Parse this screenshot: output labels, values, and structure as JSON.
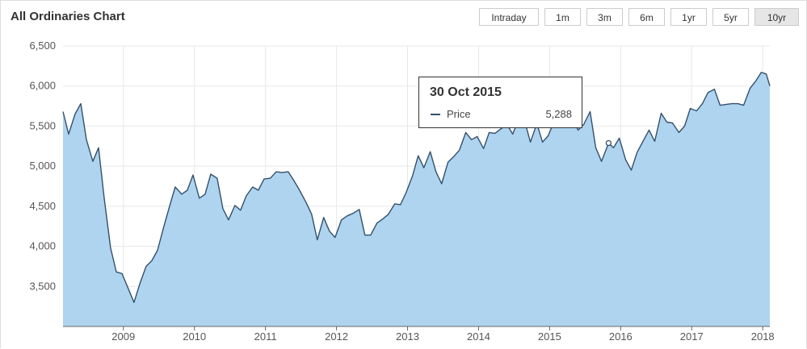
{
  "title": "All Ordinaries Chart",
  "range_buttons": [
    "Intraday",
    "1m",
    "3m",
    "6m",
    "1yr",
    "5yr",
    "10yr"
  ],
  "active_range": "10yr",
  "tooltip": {
    "date": "30 Oct 2015",
    "series_label": "Price",
    "value": "5,288"
  },
  "chart_data": {
    "type": "area",
    "title": "All Ordinaries Chart",
    "xlabel": "",
    "ylabel": "",
    "xlim": [
      2008.15,
      2018.1
    ],
    "ylim": [
      3000,
      6500
    ],
    "y_ticks": [
      3500,
      4000,
      4500,
      5000,
      5500,
      6000,
      6500
    ],
    "y_tick_labels": [
      "3,500",
      "4,000",
      "4,500",
      "5,000",
      "5,500",
      "6,000",
      "6,500"
    ],
    "x_ticks": [
      2009,
      2010,
      2011,
      2012,
      2013,
      2014,
      2015,
      2016,
      2017,
      2018
    ],
    "x_tick_labels": [
      "2009",
      "2010",
      "2011",
      "2012",
      "2013",
      "2014",
      "2015",
      "2016",
      "2017",
      "2018"
    ],
    "grid": true,
    "colors": {
      "line": "#34506c",
      "fill": "#aed4ef",
      "grid": "#e8e8e8",
      "axis": "#666666"
    },
    "highlight": {
      "x": 2015.83,
      "y": 5288,
      "label": "30 Oct 2015"
    },
    "series": [
      {
        "name": "Price",
        "x": [
          2008.15,
          2008.23,
          2008.32,
          2008.4,
          2008.48,
          2008.57,
          2008.65,
          2008.73,
          2008.82,
          2008.9,
          2008.98,
          2009.07,
          2009.15,
          2009.23,
          2009.32,
          2009.4,
          2009.48,
          2009.57,
          2009.65,
          2009.73,
          2009.82,
          2009.9,
          2009.98,
          2010.07,
          2010.15,
          2010.23,
          2010.32,
          2010.4,
          2010.48,
          2010.57,
          2010.65,
          2010.73,
          2010.82,
          2010.9,
          2010.98,
          2011.07,
          2011.15,
          2011.23,
          2011.32,
          2011.4,
          2011.48,
          2011.57,
          2011.65,
          2011.73,
          2011.82,
          2011.9,
          2011.98,
          2012.07,
          2012.15,
          2012.23,
          2012.32,
          2012.4,
          2012.48,
          2012.57,
          2012.65,
          2012.73,
          2012.82,
          2012.9,
          2012.98,
          2013.07,
          2013.15,
          2013.23,
          2013.32,
          2013.4,
          2013.48,
          2013.57,
          2013.65,
          2013.73,
          2013.82,
          2013.9,
          2013.98,
          2014.07,
          2014.15,
          2014.23,
          2014.32,
          2014.4,
          2014.48,
          2014.57,
          2014.65,
          2014.73,
          2014.82,
          2014.9,
          2014.98,
          2015.07,
          2015.15,
          2015.23,
          2015.32,
          2015.4,
          2015.48,
          2015.57,
          2015.65,
          2015.73,
          2015.83,
          2015.9,
          2015.98,
          2016.07,
          2016.15,
          2016.23,
          2016.32,
          2016.4,
          2016.48,
          2016.57,
          2016.65,
          2016.73,
          2016.82,
          2016.9,
          2016.98,
          2017.07,
          2017.15,
          2017.23,
          2017.32,
          2017.4,
          2017.48,
          2017.57,
          2017.65,
          2017.73,
          2017.82,
          2017.9,
          2017.98,
          2018.05,
          2018.1
        ],
        "values": [
          5680,
          5400,
          5650,
          5780,
          5330,
          5060,
          5230,
          4600,
          3980,
          3680,
          3660,
          3470,
          3300,
          3530,
          3750,
          3820,
          3950,
          4250,
          4500,
          4740,
          4650,
          4700,
          4890,
          4600,
          4650,
          4900,
          4850,
          4470,
          4330,
          4510,
          4450,
          4630,
          4740,
          4700,
          4840,
          4850,
          4930,
          4920,
          4930,
          4820,
          4700,
          4550,
          4400,
          4080,
          4360,
          4190,
          4110,
          4330,
          4380,
          4410,
          4460,
          4140,
          4140,
          4290,
          4340,
          4400,
          4530,
          4520,
          4670,
          4880,
          5130,
          4980,
          5180,
          4930,
          4780,
          5050,
          5120,
          5200,
          5420,
          5330,
          5370,
          5220,
          5420,
          5410,
          5470,
          5520,
          5400,
          5600,
          5560,
          5300,
          5530,
          5300,
          5380,
          5570,
          5760,
          5700,
          5600,
          5450,
          5520,
          5680,
          5230,
          5060,
          5288,
          5230,
          5350,
          5080,
          4950,
          5170,
          5320,
          5450,
          5310,
          5660,
          5550,
          5540,
          5420,
          5500,
          5720,
          5690,
          5780,
          5920,
          5960,
          5760,
          5770,
          5780,
          5780,
          5760,
          5970,
          6060,
          6170,
          6150,
          6000
        ]
      }
    ]
  }
}
